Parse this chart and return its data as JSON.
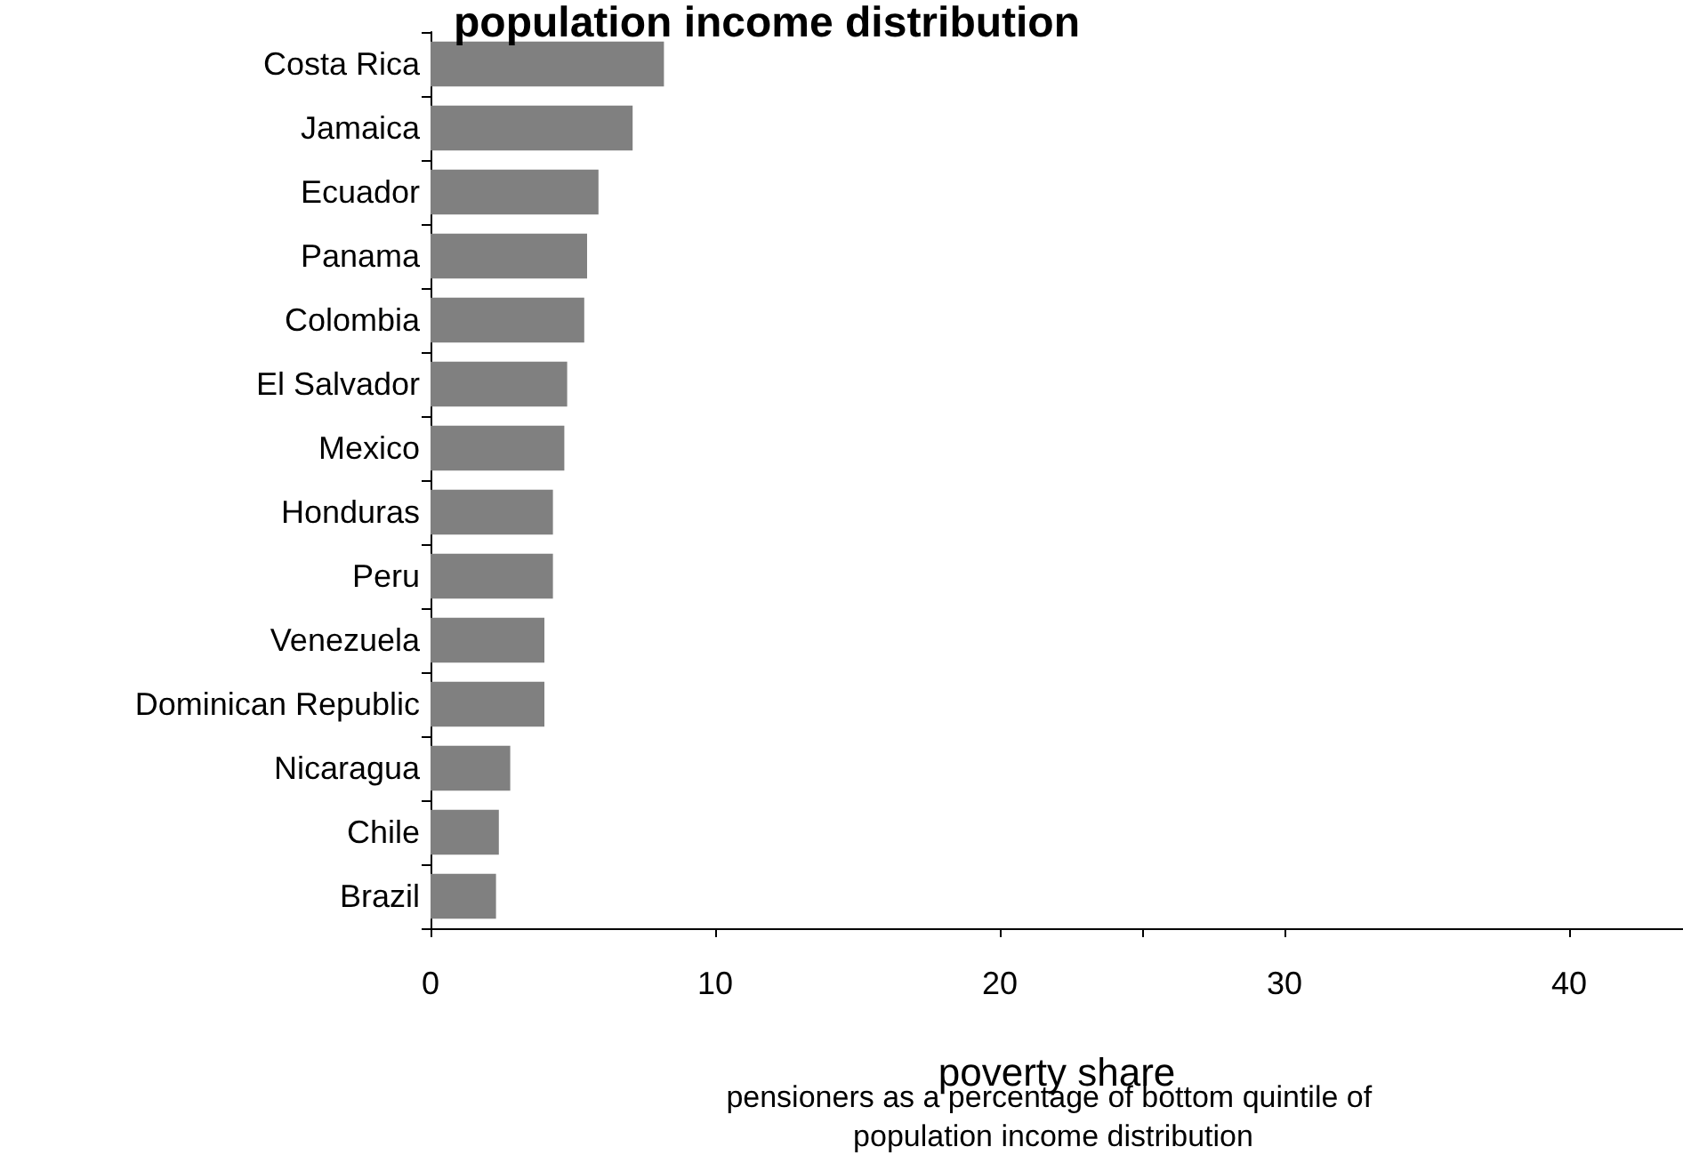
{
  "chart_data": {
    "type": "bar",
    "orientation": "horizontal",
    "title": "population income distribution",
    "xlabel": "poverty share",
    "annotations": [
      "pensioners as a percentage of bottom quintile of population income distribution"
    ],
    "categories": [
      "Costa Rica",
      "Jamaica",
      "Ecuador",
      "Panama",
      "Colombia",
      "El Salvador",
      "Mexico",
      "Honduras",
      "Peru",
      "Venezuela",
      "Dominican Republic",
      "Nicaragua",
      "Chile",
      "Brazil"
    ],
    "values": [
      8.2,
      7.1,
      5.9,
      5.5,
      5.4,
      4.8,
      4.7,
      4.3,
      4.3,
      4.0,
      4.0,
      2.8,
      2.4,
      2.3
    ],
    "color": "#808080",
    "xlim": [
      0,
      44
    ],
    "xticks": [
      0,
      10,
      20,
      {
        "value": 25,
        "label": null
      },
      30,
      40
    ],
    "grid": false
  }
}
